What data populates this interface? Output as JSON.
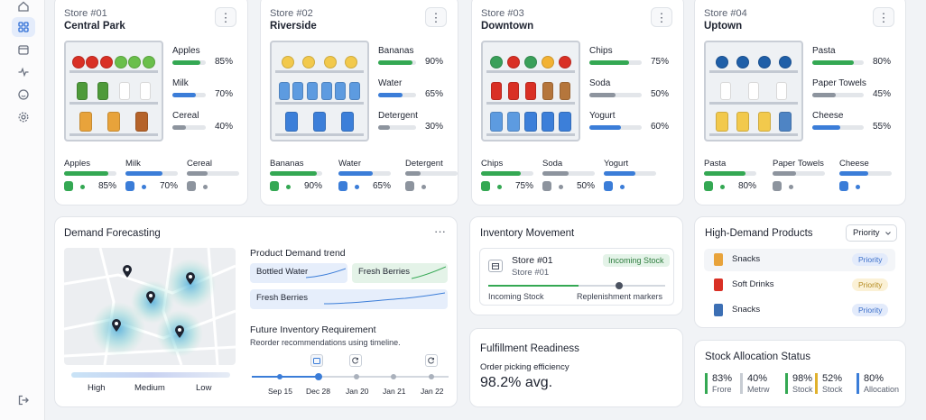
{
  "colors": {
    "green": "#34a853",
    "blue": "#3b7dd8",
    "gray": "#8d949e",
    "accent": "#2f6fd6"
  },
  "sidebar": {
    "items": [
      {
        "icon": "home-icon"
      },
      {
        "icon": "grid-icon",
        "active": true
      },
      {
        "icon": "calendar-icon"
      },
      {
        "icon": "activity-icon"
      },
      {
        "icon": "smiley-icon"
      },
      {
        "icon": "gear-icon"
      }
    ],
    "logout_icon": "logout-icon"
  },
  "stores": [
    {
      "label": "Store #01",
      "name": "Central Park",
      "products": [
        {
          "name": "Apples",
          "pct": "85%",
          "value": 85,
          "color": "#34a853"
        },
        {
          "name": "Milk",
          "pct": "70%",
          "value": 70,
          "color": "#3b7dd8"
        },
        {
          "name": "Cereal",
          "pct": "40%",
          "value": 40,
          "color": "#8d949e"
        }
      ],
      "bottom": [
        {
          "name": "Apples",
          "value": 85,
          "color": "#34a853",
          "pct": "85%"
        },
        {
          "name": "Milk",
          "value": 70,
          "color": "#3b7dd8",
          "pct": "70%"
        },
        {
          "name": "Cereal",
          "value": 40,
          "color": "#8d949e",
          "pct": ""
        }
      ]
    },
    {
      "label": "Store #02",
      "name": "Riverside",
      "products": [
        {
          "name": "Bananas",
          "pct": "90%",
          "value": 90,
          "color": "#34a853"
        },
        {
          "name": "Water",
          "pct": "65%",
          "value": 65,
          "color": "#3b7dd8"
        },
        {
          "name": "Detergent",
          "pct": "30%",
          "value": 30,
          "color": "#8d949e"
        }
      ],
      "bottom": [
        {
          "name": "Bananas",
          "value": 90,
          "color": "#34a853",
          "pct": "90%"
        },
        {
          "name": "Water",
          "value": 65,
          "color": "#3b7dd8",
          "pct": "65%"
        },
        {
          "name": "Detergent",
          "value": 30,
          "color": "#8d949e",
          "pct": ""
        }
      ]
    },
    {
      "label": "Store #03",
      "name": "Downtown",
      "products": [
        {
          "name": "Chips",
          "pct": "75%",
          "value": 75,
          "color": "#34a853"
        },
        {
          "name": "Soda",
          "pct": "50%",
          "value": 50,
          "color": "#8d949e"
        },
        {
          "name": "Yogurt",
          "pct": "60%",
          "value": 60,
          "color": "#3b7dd8"
        }
      ],
      "bottom": [
        {
          "name": "Chips",
          "value": 75,
          "color": "#34a853",
          "pct": "75%"
        },
        {
          "name": "Soda",
          "value": 50,
          "color": "#8d949e",
          "pct": "50%"
        },
        {
          "name": "Yogurt",
          "value": 60,
          "color": "#3b7dd8",
          "pct": ""
        }
      ]
    },
    {
      "label": "Store #04",
      "name": "Uptown",
      "products": [
        {
          "name": "Pasta",
          "pct": "80%",
          "value": 80,
          "color": "#34a853"
        },
        {
          "name": "Paper Towels",
          "pct": "45%",
          "value": 45,
          "color": "#8d949e"
        },
        {
          "name": "Cheese",
          "pct": "55%",
          "value": 55,
          "color": "#3b7dd8"
        }
      ],
      "bottom": [
        {
          "name": "Pasta",
          "value": 80,
          "color": "#34a853",
          "pct": "80%"
        },
        {
          "name": "Paper Towels",
          "value": 45,
          "color": "#8d949e",
          "pct": ""
        },
        {
          "name": "Cheese",
          "value": 55,
          "color": "#3b7dd8",
          "pct": ""
        }
      ]
    }
  ],
  "demand": {
    "title": "Demand Forecasting",
    "more": "···",
    "legend": {
      "high": "High",
      "medium": "Medium",
      "low": "Low"
    },
    "trend_title": "Product Demand trend",
    "trend_items": [
      "Bottled Water",
      "Fresh Berries",
      "Fresh Berries"
    ],
    "future_title": "Future Inventory Requirement",
    "future_sub": "Reorder recommendations using timeline.",
    "timeline_dates": [
      "Sep 15",
      "Dec 28",
      "Jan 20",
      "Jan 21",
      "Jan 22"
    ]
  },
  "inventory": {
    "title": "Inventory Movement",
    "store_title": "Store #01",
    "store_sub": "Store #01",
    "badge": "Incoming Stock",
    "left_label": "Incoming Stock",
    "right_label": "Replenishment markers",
    "progress": 0.55
  },
  "fulfillment": {
    "title": "Fulfillment Readiness",
    "metric_label": "Order picking efficiency",
    "metric_value": "98.2% avg."
  },
  "high_demand": {
    "title": "High-Demand Products",
    "dropdown": "Priority",
    "items": [
      {
        "name": "Snacks",
        "badge": "Priority",
        "badge_bg": "#e3ebfb",
        "badge_fg": "#3b6fc9",
        "icon": "chips-bag-icon"
      },
      {
        "name": "Soft Drinks",
        "badge": "Priority",
        "badge_bg": "#fbf1d6",
        "badge_fg": "#b48a1f",
        "icon": "soda-can-icon"
      },
      {
        "name": "Snacks",
        "badge": "Priority",
        "badge_bg": "#e3ebfb",
        "badge_fg": "#3b6fc9",
        "icon": "snack-box-icon"
      }
    ]
  },
  "allocation": {
    "title": "Stock Allocation Status",
    "items": [
      {
        "value": "83%",
        "label": "Frore",
        "color": "#34a853"
      },
      {
        "value": "40%",
        "label": "Metrw",
        "color": "#c7ccd3"
      },
      {
        "value": "98%",
        "label": "Stock",
        "color": "#34a853"
      },
      {
        "value": "52%",
        "label": "Stock",
        "color": "#e0b12d"
      },
      {
        "value": "80%",
        "label": "Allocation",
        "color": "#3b7dd8"
      }
    ]
  }
}
